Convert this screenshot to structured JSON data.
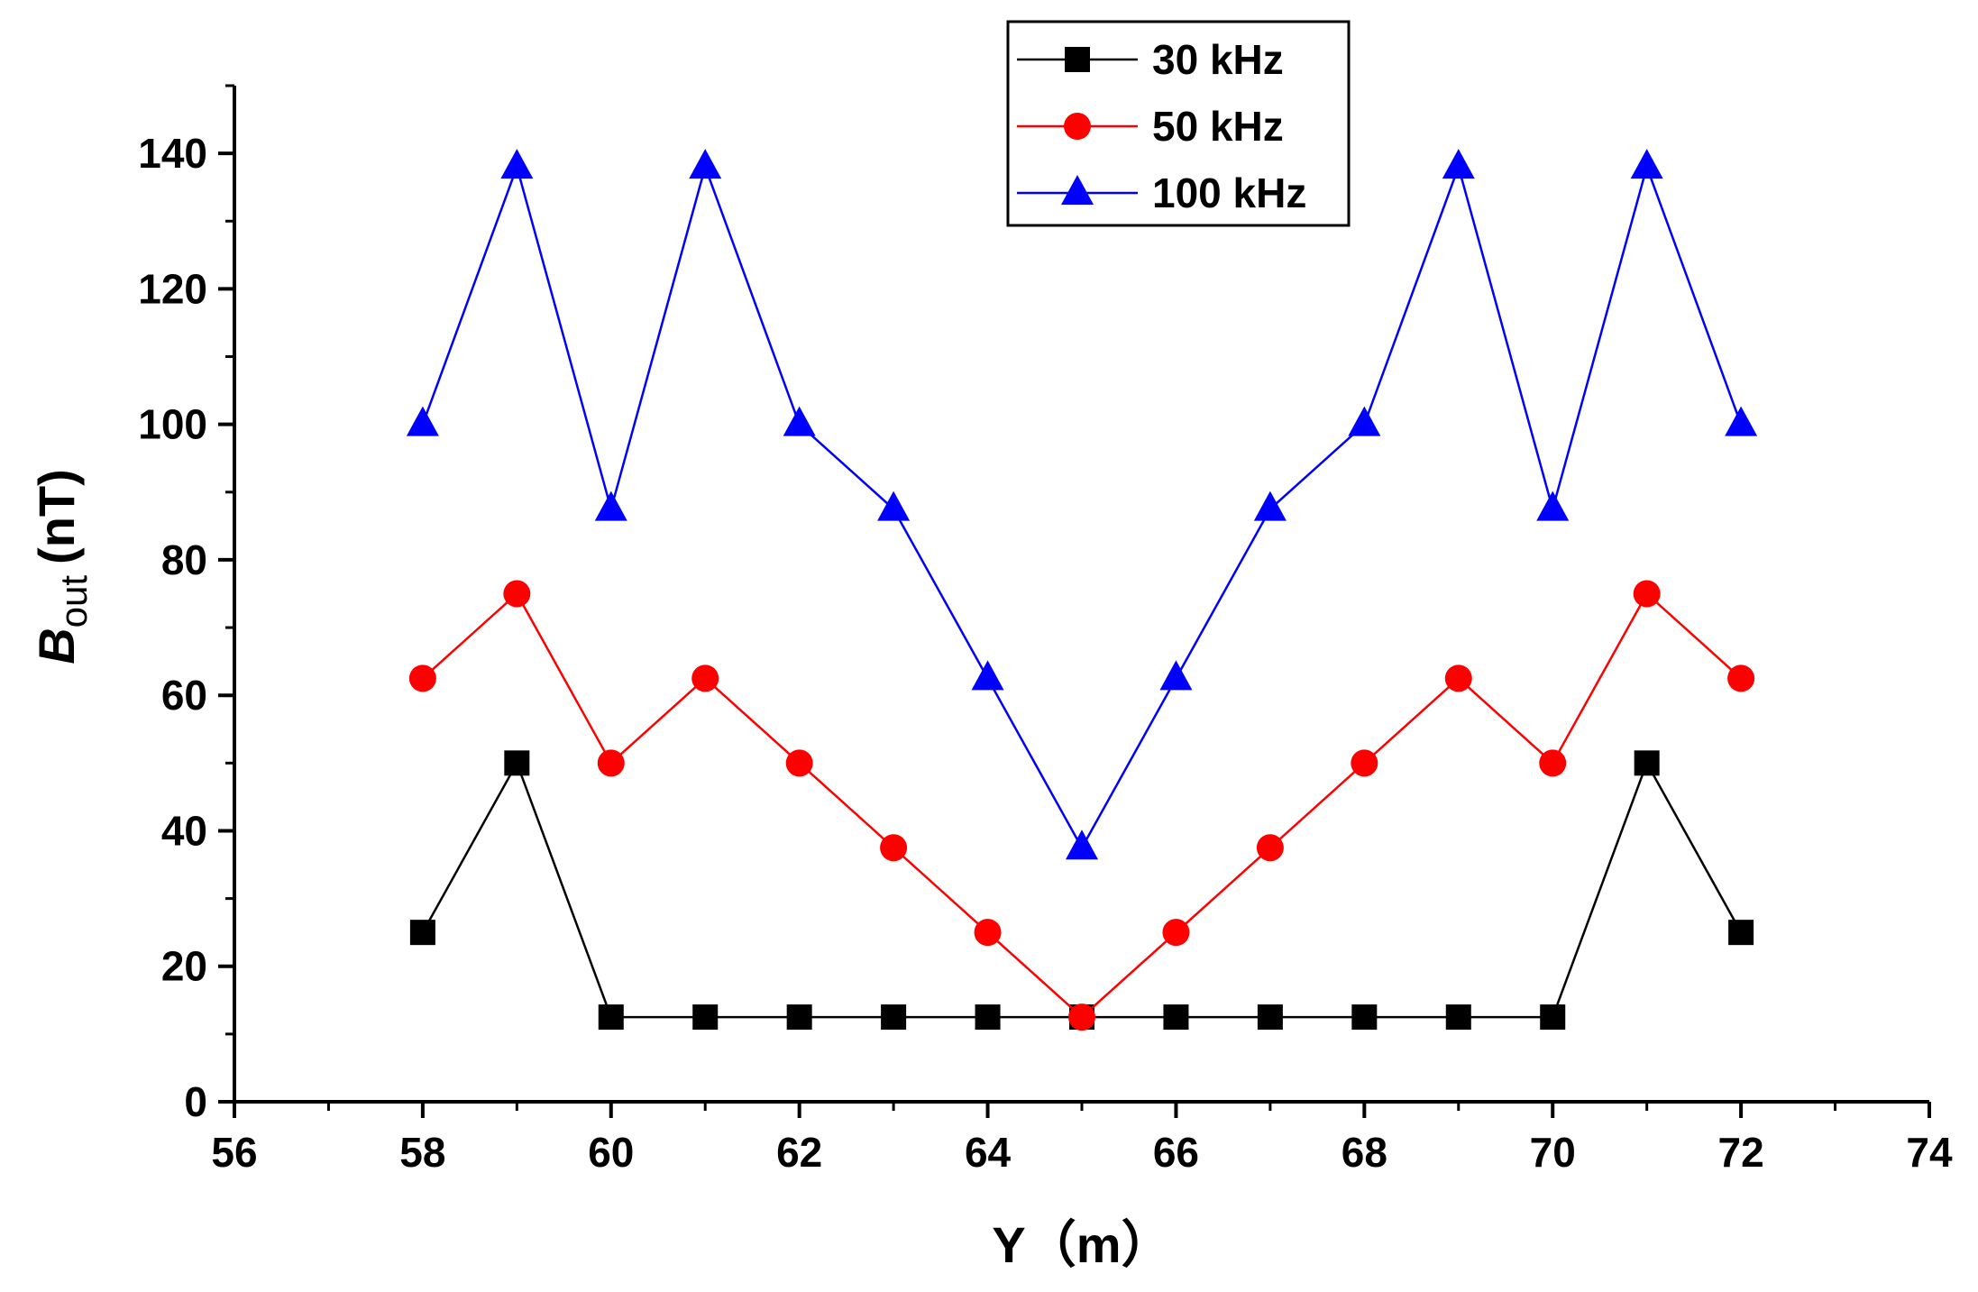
{
  "chart_data": {
    "type": "line",
    "xlabel": "Y（m）",
    "ylabel": {
      "main": "B",
      "sub": "out",
      "unit": "(nT)"
    },
    "xlim": [
      56,
      74
    ],
    "ylim": [
      0,
      150
    ],
    "x_ticks": [
      56,
      58,
      60,
      62,
      64,
      66,
      68,
      70,
      72,
      74
    ],
    "y_ticks": [
      0,
      20,
      40,
      60,
      80,
      100,
      120,
      140
    ],
    "grid": false,
    "legend_position": "top-center",
    "x": [
      58,
      59,
      60,
      61,
      62,
      63,
      64,
      65,
      66,
      67,
      68,
      69,
      70,
      71,
      72
    ],
    "series": [
      {
        "name": "30 kHz",
        "color": "#000000",
        "marker": "square",
        "values": [
          25,
          50,
          12.5,
          12.5,
          12.5,
          12.5,
          12.5,
          12.5,
          12.5,
          12.5,
          12.5,
          12.5,
          12.5,
          50,
          25
        ]
      },
      {
        "name": "50 kHz",
        "color": "#ff0000",
        "marker": "circle",
        "values": [
          62.5,
          75,
          50,
          62.5,
          50,
          37.5,
          25,
          12.5,
          25,
          37.5,
          50,
          62.5,
          50,
          75,
          62.5
        ]
      },
      {
        "name": "100 kHz",
        "color": "#0000ff",
        "marker": "triangle",
        "values": [
          100,
          138,
          87.5,
          138,
          100,
          87.5,
          62.5,
          37.5,
          62.5,
          87.5,
          100,
          138,
          87.5,
          138,
          100
        ]
      }
    ]
  }
}
